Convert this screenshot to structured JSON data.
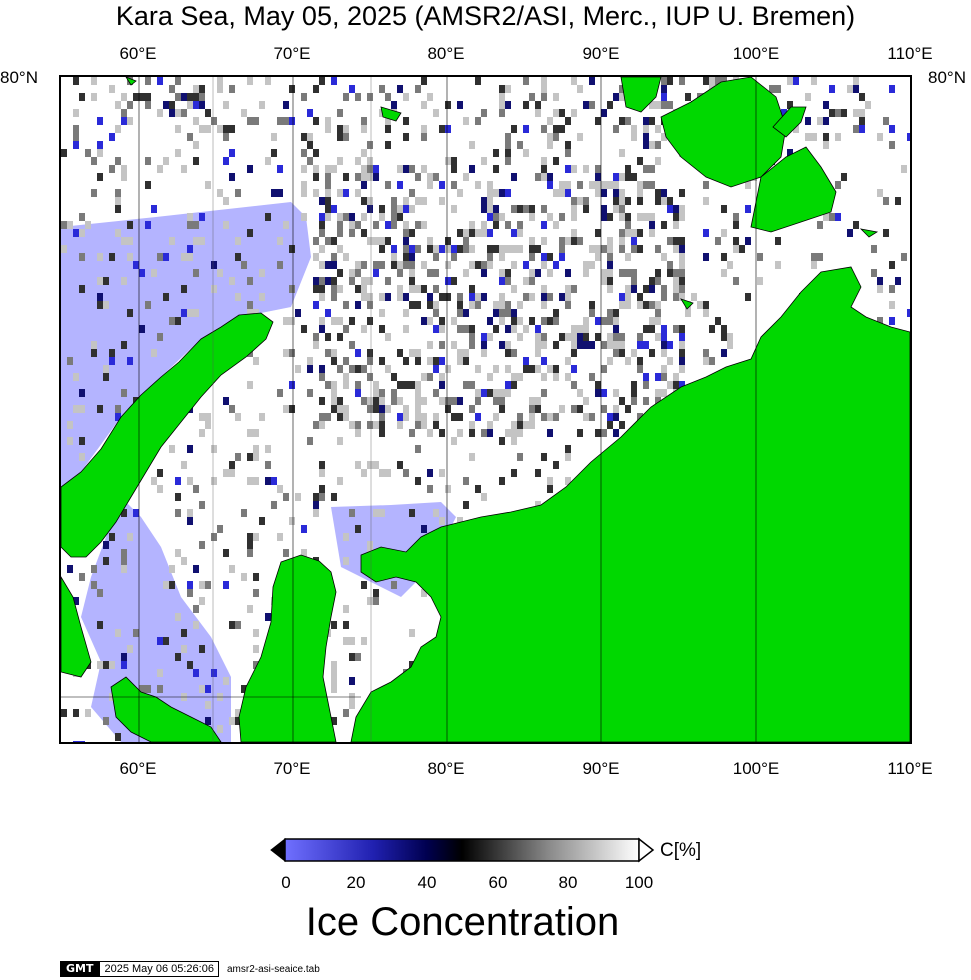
{
  "title": "Kara Sea, May 05, 2025 (AMSR2/ASI, Merc., IUP U. Bremen)",
  "axes": {
    "lon_labels_top": [
      "60°E",
      "70°E",
      "80°E",
      "90°E",
      "100°E",
      "110°E"
    ],
    "lon_labels_bottom": [
      "60°E",
      "70°E",
      "80°E",
      "90°E",
      "100°E",
      "110°E"
    ],
    "lat_label_left": "80°N",
    "lat_label_right": "80°N"
  },
  "colorbar": {
    "tick_labels": [
      "0",
      "20",
      "40",
      "60",
      "80",
      "100"
    ],
    "unit": "C[%]",
    "legend_title": "Ice Concentration",
    "colors": [
      "#7070ff",
      "#0a0a70",
      "#000000",
      "#bdbdbd",
      "#ffffff"
    ]
  },
  "colors": {
    "land": "#00d800",
    "open_water": "#b4b4ff",
    "ice_full": "#ffffff"
  },
  "footer": {
    "logo": "GMT",
    "timestamp": "2025 May 06 05:26:06",
    "source_file": "amsr2-asi-seaice.tab"
  }
}
